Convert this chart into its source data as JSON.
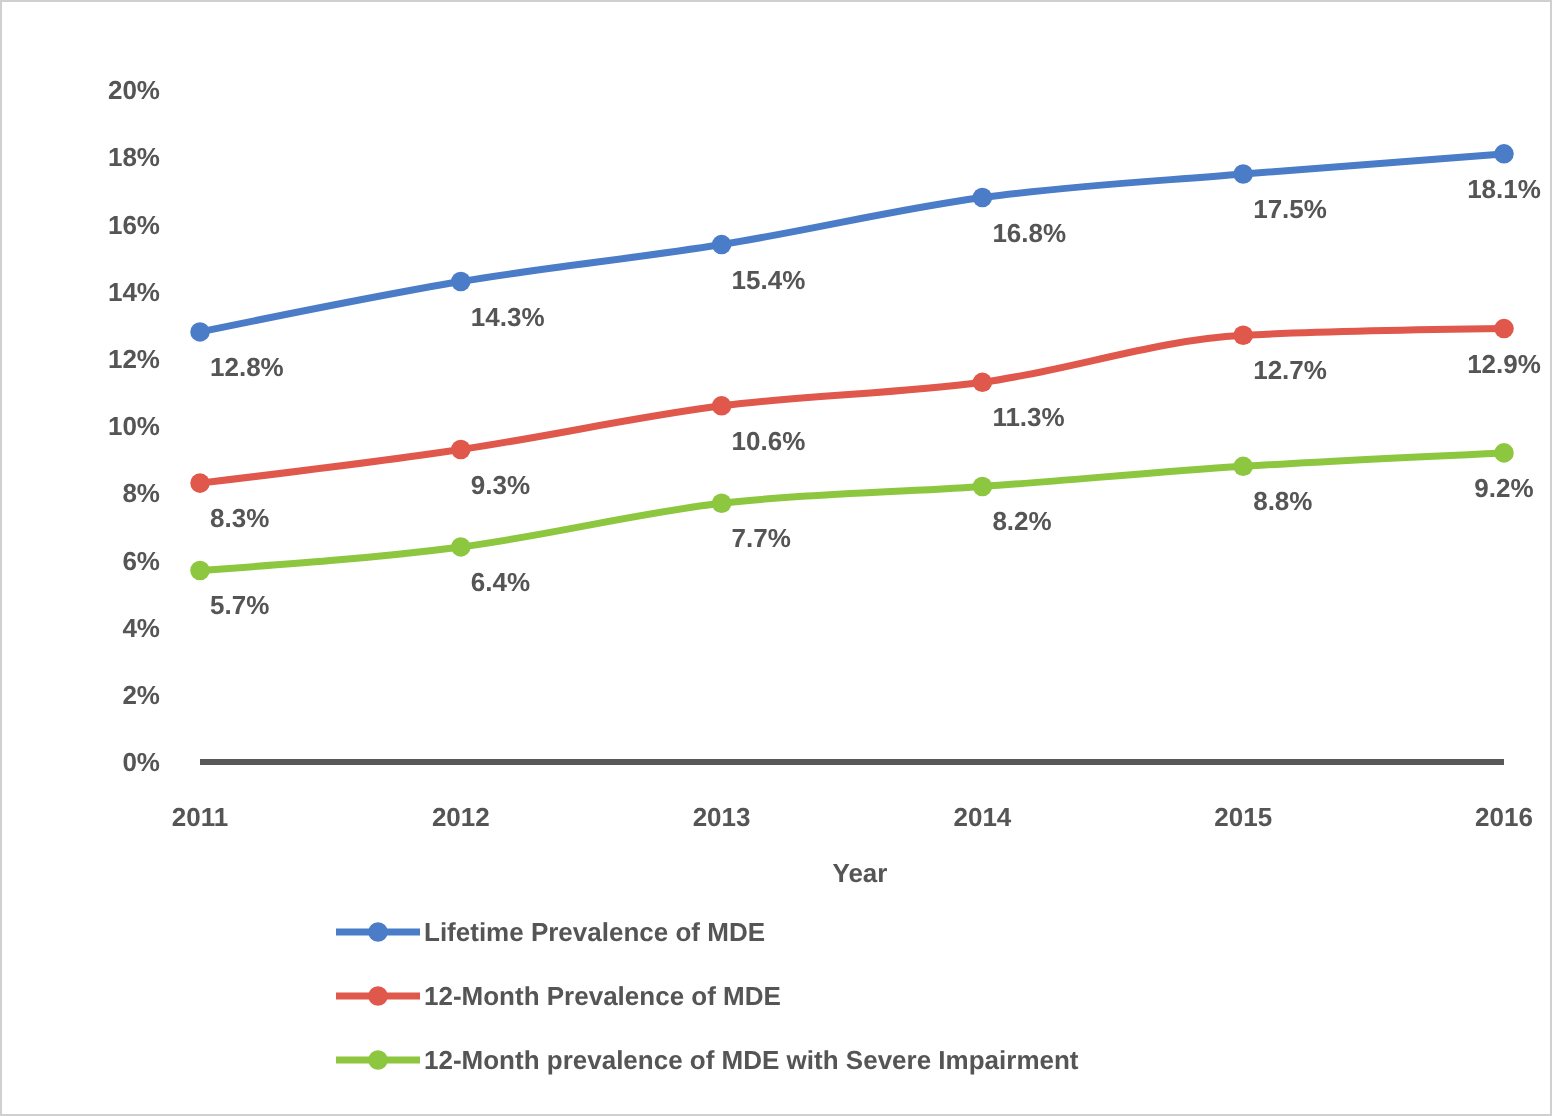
{
  "chart_data": {
    "type": "line",
    "xlabel": "Year",
    "x": [
      2011,
      2012,
      2013,
      2014,
      2015,
      2016
    ],
    "xlim": [
      2011,
      2016
    ],
    "xticks": [
      2011,
      2012,
      2013,
      2014,
      2015,
      2016
    ],
    "ylim": [
      0,
      20
    ],
    "yticks": [
      {
        "value": 0,
        "label": "0%"
      },
      {
        "value": 2,
        "label": "2%"
      },
      {
        "value": 4,
        "label": "4%"
      },
      {
        "value": 6,
        "label": "6%"
      },
      {
        "value": 8,
        "label": "8%"
      },
      {
        "value": 10,
        "label": "10%"
      },
      {
        "value": 12,
        "label": "12%"
      },
      {
        "value": 14,
        "label": "14%"
      },
      {
        "value": 16,
        "label": "16%"
      },
      {
        "value": 18,
        "label": "18%"
      },
      {
        "value": 20,
        "label": "20%"
      }
    ],
    "grid": false,
    "legend": "bottom",
    "marker": "circle",
    "line_style": "solid",
    "series": [
      {
        "name": "Lifetime Prevalence of MDE",
        "color": "#4a7cc7",
        "values": [
          12.8,
          14.3,
          15.4,
          16.8,
          17.5,
          18.1
        ],
        "value_labels": [
          "12.8%",
          "14.3%",
          "15.4%",
          "16.8%",
          "17.5%",
          "18.1%"
        ]
      },
      {
        "name": "12-Month Prevalence of MDE",
        "color": "#e0574b",
        "values": [
          8.3,
          9.3,
          10.6,
          11.3,
          12.7,
          12.9
        ],
        "value_labels": [
          "8.3%",
          "9.3%",
          "10.6%",
          "11.3%",
          "12.7%",
          "12.9%"
        ]
      },
      {
        "name": "12-Month prevalence of MDE with Severe Impairment",
        "color": "#8dc63f",
        "values": [
          5.7,
          6.4,
          7.7,
          8.2,
          8.8,
          9.2
        ],
        "value_labels": [
          "5.7%",
          "6.4%",
          "7.7%",
          "8.2%",
          "8.8%",
          "9.2%"
        ]
      }
    ]
  }
}
